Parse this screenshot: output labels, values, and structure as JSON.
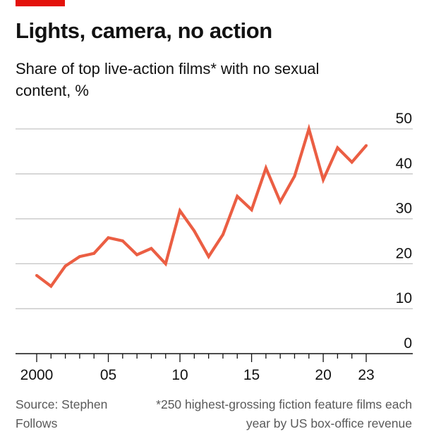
{
  "header": {
    "title": "Lights, camera, no action",
    "subtitle": "Share of top live-action films* with no sexual content, %"
  },
  "footer": {
    "source": "Source: Stephen Follows",
    "note": "*250 highest-grossing fiction feature films each year by US box-office revenue"
  },
  "colors": {
    "accent": "#e3120b",
    "line": "#eb5e43",
    "grid": "#c4c4c4",
    "axis": "#121212",
    "text": "#121212",
    "muted": "#595959"
  },
  "chart_data": {
    "type": "line",
    "title": "Lights, camera, no action",
    "subtitle": "Share of top live-action films* with no sexual content, %",
    "xlabel": "",
    "ylabel": "",
    "ylim": [
      0,
      50
    ],
    "xlim": [
      2000,
      2023
    ],
    "y_ticks": [
      0,
      10,
      20,
      30,
      40,
      50
    ],
    "y_tick_labels": [
      "0",
      "10",
      "20",
      "30",
      "40",
      "50"
    ],
    "x_ticks": [
      2000,
      2005,
      2010,
      2015,
      2020,
      2023
    ],
    "x_tick_labels": [
      "2000",
      "05",
      "10",
      "15",
      "20",
      "23"
    ],
    "grid": "horizontal",
    "y_axis_position": "right",
    "series": [
      {
        "x": [
          2000,
          2001,
          2002,
          2003,
          2004,
          2005,
          2006,
          2007,
          2008,
          2009,
          2010,
          2011,
          2012,
          2013,
          2014,
          2015,
          2016,
          2017,
          2018,
          2019,
          2020,
          2021,
          2022,
          2023
        ],
        "values": [
          17.4,
          15,
          19.5,
          21.6,
          22.3,
          25.8,
          25.1,
          22,
          23.4,
          20,
          31.8,
          27.3,
          21.6,
          26.5,
          35,
          32,
          41.3,
          33.8,
          39.5,
          50,
          38.7,
          45.8,
          42.6,
          46.3
        ]
      }
    ]
  }
}
